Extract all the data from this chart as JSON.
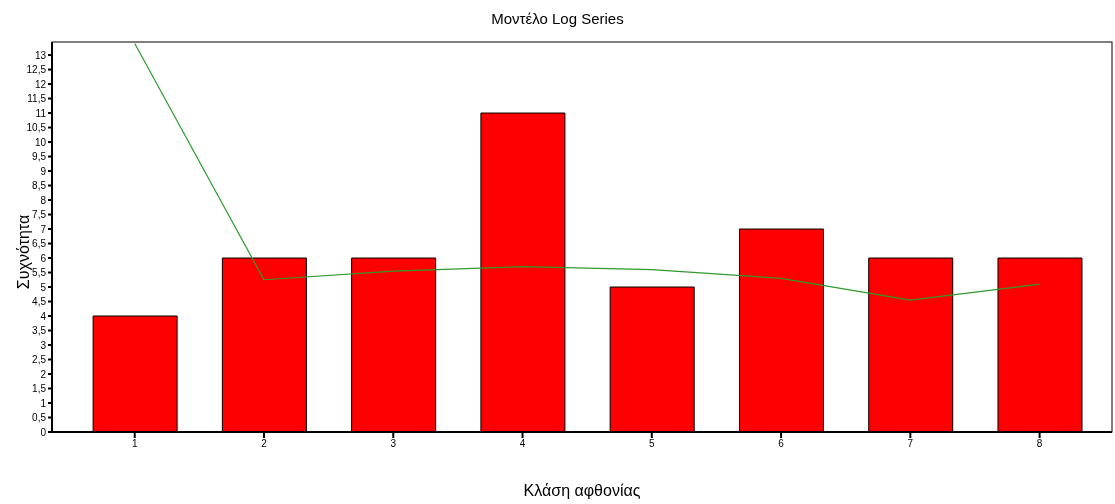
{
  "chart_data": {
    "type": "bar",
    "title": "Μοντέλο Log Series",
    "xlabel": "Κλάση αφθονίας",
    "ylabel": "Συχνότητα",
    "x": [
      1,
      2,
      3,
      4,
      5,
      6,
      7,
      8
    ],
    "series": [
      {
        "color": "#ff0000",
        "values": [
          4,
          6,
          6,
          11,
          5,
          7,
          6,
          6
        ]
      },
      {
        "type": "line",
        "color": "#2e9b2e",
        "values": [
          13.4,
          5.25,
          5.55,
          5.7,
          5.6,
          5.3,
          4.55,
          5.1
        ]
      }
    ],
    "xlim": [
      0.36,
      8.56
    ],
    "xticks": [
      1,
      2,
      3,
      4,
      5,
      6,
      7,
      8
    ],
    "ylim": [
      0,
      13.45
    ],
    "yticks": [
      0,
      {
        "value": 0.5,
        "label": "0,5"
      },
      1,
      {
        "value": 1.5,
        "label": "1,5"
      },
      2,
      {
        "value": 2.5,
        "label": "2,5"
      },
      3,
      {
        "value": 3.5,
        "label": "3,5"
      },
      4,
      {
        "value": 4.5,
        "label": "4,5"
      },
      5,
      {
        "value": 5.5,
        "label": "5,5"
      },
      6,
      {
        "value": 6.5,
        "label": "6,5"
      },
      7,
      {
        "value": 7.5,
        "label": "7,5"
      },
      8,
      {
        "value": 8.5,
        "label": "8,5"
      },
      9,
      {
        "value": 9.5,
        "label": "9,5"
      },
      10,
      {
        "value": 10.5,
        "label": "10,5"
      },
      11,
      {
        "value": 11.5,
        "label": "11,5"
      },
      12,
      {
        "value": 12.5,
        "label": "12,5"
      },
      13
    ],
    "grid": false,
    "legend": false,
    "marker": "none"
  }
}
